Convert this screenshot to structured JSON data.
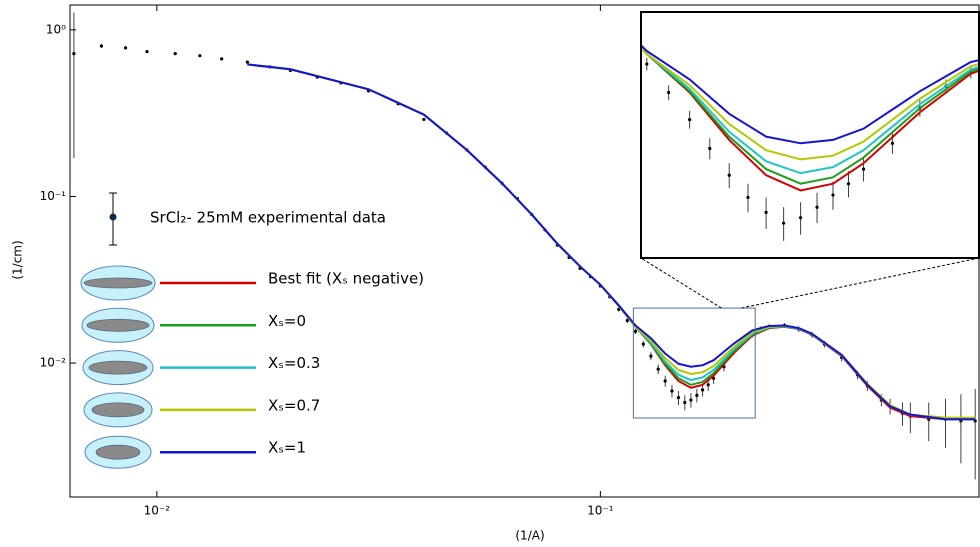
{
  "chart_data": {
    "type": "line",
    "xscale": "log",
    "yscale": "log",
    "xlabel": "(1/A)",
    "ylabel": "(1/cm)",
    "xlim": [
      0.00637,
      0.714
    ],
    "ylim": [
      0.00157,
      1.41
    ],
    "xticks": [
      {
        "value": 0.01,
        "label": "10⁻²"
      },
      {
        "value": 0.1,
        "label": "10⁻¹"
      }
    ],
    "yticks": [
      {
        "value": 1,
        "label": "10⁰"
      },
      {
        "value": 0.1,
        "label": "10⁻¹"
      },
      {
        "value": 0.01,
        "label": "10⁻²"
      }
    ],
    "inset": {
      "xlim": [
        0.1187,
        0.2234
      ],
      "ylim": [
        0.004677,
        0.02138
      ]
    },
    "experimental": {
      "name": "SrCl₂- 25mM experimental data",
      "color": "#000000",
      "x": [
        0.0065,
        0.0075,
        0.0085,
        0.0095,
        0.011,
        0.0125,
        0.014,
        0.016,
        0.018,
        0.02,
        0.023,
        0.026,
        0.03,
        0.035,
        0.04,
        0.045,
        0.05,
        0.055,
        0.06,
        0.065,
        0.07,
        0.075,
        0.08,
        0.085,
        0.09,
        0.095,
        0.1,
        0.105,
        0.11,
        0.115,
        0.12,
        0.125,
        0.13,
        0.135,
        0.14,
        0.145,
        0.15,
        0.155,
        0.16,
        0.165,
        0.17,
        0.175,
        0.18,
        0.19,
        0.2,
        0.21,
        0.22,
        0.23,
        0.24,
        0.26,
        0.28,
        0.3,
        0.32,
        0.35,
        0.38,
        0.4,
        0.43,
        0.45,
        0.48,
        0.5,
        0.55,
        0.6,
        0.65,
        0.7
      ],
      "values": [
        0.72,
        0.8,
        0.78,
        0.74,
        0.72,
        0.7,
        0.67,
        0.64,
        0.6,
        0.57,
        0.52,
        0.48,
        0.43,
        0.36,
        0.29,
        0.24,
        0.19,
        0.15,
        0.12,
        0.097,
        0.078,
        0.063,
        0.051,
        0.043,
        0.037,
        0.033,
        0.029,
        0.025,
        0.021,
        0.018,
        0.0155,
        0.013,
        0.011,
        0.0092,
        0.0078,
        0.0068,
        0.0062,
        0.0058,
        0.006,
        0.0064,
        0.0069,
        0.0074,
        0.0081,
        0.0095,
        0.0118,
        0.0135,
        0.0148,
        0.016,
        0.0165,
        0.0168,
        0.016,
        0.0148,
        0.013,
        0.0108,
        0.0085,
        0.0073,
        0.006,
        0.0055,
        0.005,
        0.0048,
        0.0046,
        0.0046,
        0.0045,
        0.0045
      ],
      "errors": [
        0.55,
        0.02,
        0.02,
        0.015,
        0.015,
        0.012,
        0.012,
        0.01,
        0.01,
        0.01,
        0.008,
        0.008,
        0.007,
        0.006,
        0.005,
        0.004,
        0.003,
        0.0025,
        0.002,
        0.0016,
        0.0013,
        0.001,
        0.0009,
        0.0008,
        0.0007,
        0.0006,
        0.0006,
        0.0006,
        0.0006,
        0.0006,
        0.0006,
        0.0006,
        0.0006,
        0.0006,
        0.0006,
        0.0006,
        0.0006,
        0.0006,
        0.0006,
        0.0006,
        0.0006,
        0.0006,
        0.0006,
        0.0006,
        0.0006,
        0.0006,
        0.0006,
        0.0006,
        0.0006,
        0.0006,
        0.0006,
        0.0006,
        0.0006,
        0.0006,
        0.0005,
        0.0005,
        0.0005,
        0.0006,
        0.0008,
        0.001,
        0.0012,
        0.0015,
        0.002,
        0.0025
      ]
    },
    "x": [
      0.016,
      0.02,
      0.03,
      0.04,
      0.05,
      0.06,
      0.07,
      0.08,
      0.09,
      0.1,
      0.11,
      0.12,
      0.13,
      0.14,
      0.15,
      0.16,
      0.17,
      0.18,
      0.2,
      0.22,
      0.24,
      0.26,
      0.28,
      0.3,
      0.35,
      0.4,
      0.45,
      0.5,
      0.6,
      0.7
    ],
    "series": [
      {
        "name": "Best fit (Xₛ negative)",
        "color": "#d40000",
        "values": [
          0.62,
          0.58,
          0.44,
          0.31,
          0.19,
          0.12,
          0.078,
          0.052,
          0.038,
          0.0295,
          0.022,
          0.0165,
          0.013,
          0.0097,
          0.0078,
          0.0071,
          0.0074,
          0.0084,
          0.0115,
          0.0146,
          0.0162,
          0.0165,
          0.016,
          0.0148,
          0.011,
          0.0073,
          0.0054,
          0.0048,
          0.0046,
          0.0046
        ]
      },
      {
        "name": "Xₛ=0",
        "color": "#1e9e1e",
        "values": [
          0.62,
          0.58,
          0.44,
          0.31,
          0.19,
          0.12,
          0.078,
          0.052,
          0.038,
          0.0295,
          0.022,
          0.0165,
          0.0131,
          0.0099,
          0.0081,
          0.0074,
          0.0077,
          0.0087,
          0.0118,
          0.0148,
          0.0163,
          0.0166,
          0.0161,
          0.0149,
          0.0111,
          0.0074,
          0.0055,
          0.0049,
          0.0046,
          0.0046
        ]
      },
      {
        "name": "Xₛ=0.3",
        "color": "#22c4c4",
        "values": [
          0.62,
          0.58,
          0.44,
          0.31,
          0.19,
          0.12,
          0.078,
          0.052,
          0.038,
          0.0295,
          0.022,
          0.0165,
          0.0133,
          0.0102,
          0.0085,
          0.0079,
          0.0082,
          0.0091,
          0.0121,
          0.015,
          0.0164,
          0.0166,
          0.0161,
          0.0149,
          0.0111,
          0.0074,
          0.0055,
          0.0049,
          0.0046,
          0.0046
        ]
      },
      {
        "name": "Xₛ=0.7",
        "color": "#b4c800",
        "values": [
          0.62,
          0.58,
          0.44,
          0.31,
          0.19,
          0.12,
          0.078,
          0.052,
          0.038,
          0.0295,
          0.022,
          0.0165,
          0.0136,
          0.0107,
          0.0091,
          0.0086,
          0.0088,
          0.0096,
          0.0125,
          0.0153,
          0.0165,
          0.0167,
          0.0162,
          0.015,
          0.0112,
          0.0075,
          0.0056,
          0.0049,
          0.0047,
          0.0047
        ]
      },
      {
        "name": "Xₛ=1",
        "color": "#1414d4",
        "values": [
          0.62,
          0.58,
          0.44,
          0.31,
          0.19,
          0.12,
          0.078,
          0.052,
          0.038,
          0.0295,
          0.0222,
          0.0168,
          0.0141,
          0.0114,
          0.0099,
          0.0095,
          0.0097,
          0.0104,
          0.0131,
          0.0157,
          0.0167,
          0.0168,
          0.0162,
          0.015,
          0.0112,
          0.0074,
          0.0055,
          0.0049,
          0.0046,
          0.0046
        ]
      }
    ]
  }
}
